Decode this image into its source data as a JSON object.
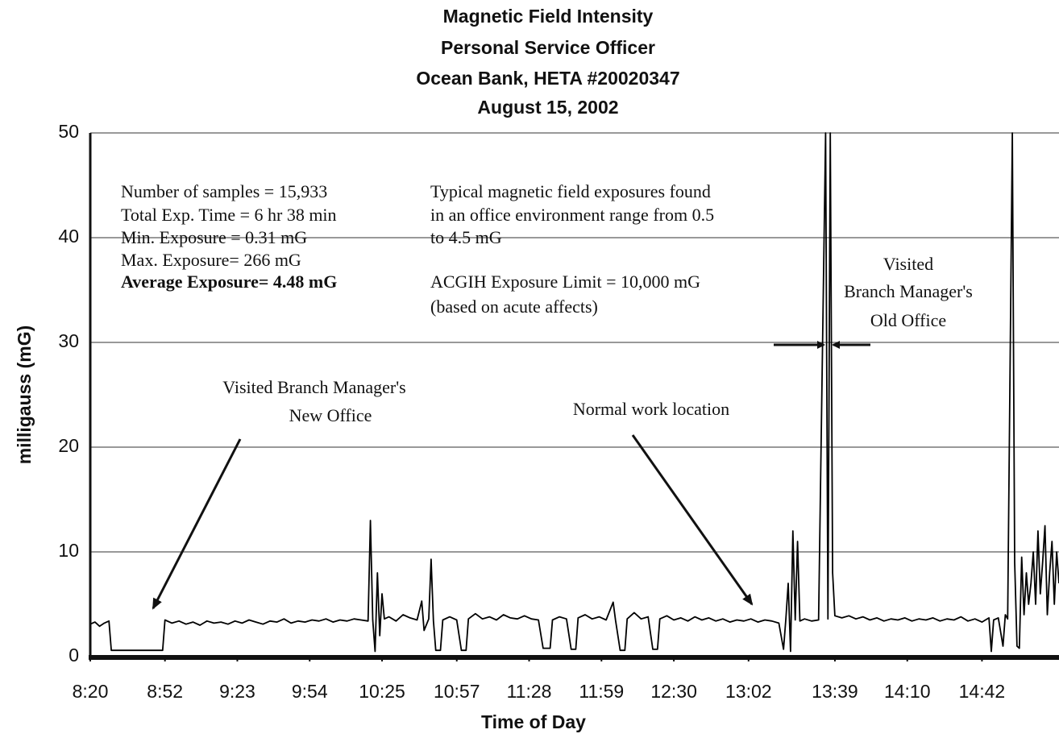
{
  "chart_data": {
    "type": "line",
    "title": [
      "Magnetic Field Intensity",
      "Personal Service Officer",
      "Ocean Bank, HETA #20020347",
      "August 15, 2002"
    ],
    "xlabel": "Time of Day",
    "ylabel": "milligauss (mG)",
    "annotations": [
      "Number of samples = 15,933",
      "Total Exp. Time = 6 hr 38 min",
      "Min. Exposure = 0.31 mG",
      "Max. Exposure= 266 mG",
      "Average Exposure= 4.48 mG",
      "Typical magnetic field exposures found",
      "in an office environment range from 0.5",
      "to 4.5 mG",
      "ACGIH Exposure Limit = 10,000 mG",
      "(based on acute affects)",
      "Visited",
      "Branch Manager's",
      "Old Office",
      "Visited Branch Manager's",
      "New Office",
      "Normal work location"
    ],
    "color": "#000000",
    "grid": true,
    "xlim": [
      500,
      915
    ],
    "ylim": [
      0,
      50
    ],
    "yticks": [
      0,
      10,
      20,
      30,
      40,
      50
    ],
    "xticks": [
      {
        "value": 500,
        "label": "8:20"
      },
      {
        "value": 532,
        "label": "8:52"
      },
      {
        "value": 563,
        "label": "9:23"
      },
      {
        "value": 594,
        "label": "9:54"
      },
      {
        "value": 625,
        "label": "10:25"
      },
      {
        "value": 657,
        "label": "10:57"
      },
      {
        "value": 688,
        "label": "11:28"
      },
      {
        "value": 719,
        "label": "11:59"
      },
      {
        "value": 750,
        "label": "12:30"
      },
      {
        "value": 782,
        "label": "13:02"
      },
      {
        "value": 819,
        "label": "13:39"
      },
      {
        "value": 850,
        "label": "14:10"
      },
      {
        "value": 882,
        "label": "14:42"
      }
    ],
    "x": [
      500,
      502,
      504,
      506,
      508,
      509,
      520,
      531,
      532,
      535,
      538,
      541,
      544,
      547,
      550,
      553,
      556,
      559,
      562,
      565,
      568,
      571,
      574,
      577,
      580,
      583,
      586,
      589,
      592,
      595,
      598,
      601,
      604,
      607,
      610,
      613,
      616,
      619,
      620,
      621,
      622,
      623,
      624,
      625,
      626,
      628,
      631,
      634,
      637,
      640,
      642,
      643,
      645,
      646,
      647,
      648,
      650,
      651,
      654,
      657,
      659,
      661,
      662,
      665,
      668,
      671,
      674,
      677,
      680,
      683,
      686,
      689,
      692,
      694,
      697,
      698,
      701,
      704,
      706,
      708,
      709,
      712,
      715,
      718,
      721,
      724,
      725,
      727,
      729,
      730,
      733,
      736,
      739,
      741,
      743,
      744,
      747,
      750,
      753,
      756,
      759,
      762,
      765,
      768,
      771,
      774,
      777,
      780,
      783,
      786,
      789,
      792,
      795,
      797,
      798,
      799,
      800,
      801,
      802,
      803,
      804,
      806,
      809,
      812,
      815,
      816,
      817,
      818,
      819,
      822,
      825,
      828,
      831,
      834,
      837,
      840,
      843,
      846,
      849,
      852,
      855,
      858,
      861,
      864,
      867,
      870,
      873,
      876,
      879,
      882,
      885,
      886,
      887,
      889,
      891,
      892,
      893,
      895,
      896,
      897,
      898,
      899,
      900,
      901,
      902,
      903,
      904,
      905,
      906,
      907,
      908,
      909,
      910,
      911,
      912,
      913,
      914,
      915
    ],
    "values": [
      3.1,
      3.3,
      2.9,
      3.2,
      3.4,
      0.6,
      0.6,
      0.6,
      3.5,
      3.2,
      3.4,
      3.1,
      3.3,
      3.0,
      3.4,
      3.2,
      3.3,
      3.1,
      3.4,
      3.2,
      3.5,
      3.3,
      3.1,
      3.4,
      3.3,
      3.6,
      3.2,
      3.4,
      3.3,
      3.5,
      3.4,
      3.6,
      3.3,
      3.5,
      3.4,
      3.6,
      3.5,
      3.4,
      13,
      3.5,
      0.5,
      8,
      2,
      6,
      3.6,
      3.8,
      3.4,
      4,
      3.7,
      3.5,
      5.3,
      2.5,
      3.6,
      9.3,
      3.4,
      0.6,
      0.6,
      3.5,
      3.8,
      3.5,
      0.6,
      0.6,
      3.6,
      4.1,
      3.6,
      3.8,
      3.5,
      4.0,
      3.7,
      3.6,
      3.9,
      3.6,
      3.5,
      0.8,
      0.8,
      3.5,
      3.8,
      3.6,
      0.7,
      0.7,
      3.7,
      4.0,
      3.6,
      3.8,
      3.5,
      5.2,
      3.5,
      0.6,
      0.6,
      3.6,
      4.2,
      3.6,
      3.8,
      0.7,
      0.7,
      3.6,
      3.9,
      3.5,
      3.7,
      3.4,
      3.8,
      3.5,
      3.7,
      3.4,
      3.6,
      3.3,
      3.5,
      3.4,
      3.6,
      3.3,
      3.5,
      3.4,
      3.2,
      0.7,
      3.6,
      7,
      0.5,
      12,
      3.5,
      11,
      3.4,
      3.6,
      3.4,
      3.5,
      50,
      3.6,
      50,
      8,
      3.9,
      3.7,
      3.9,
      3.6,
      3.8,
      3.5,
      3.7,
      3.4,
      3.6,
      3.5,
      3.7,
      3.4,
      3.6,
      3.5,
      3.7,
      3.4,
      3.6,
      3.5,
      3.8,
      3.4,
      3.6,
      3.3,
      3.7,
      0.5,
      3.5,
      3.7,
      1,
      4,
      3.6,
      50,
      9,
      1,
      0.8,
      9.5,
      4,
      8,
      5,
      7,
      10,
      5,
      12,
      6,
      9,
      12.5,
      4,
      8,
      11,
      5,
      10,
      7
    ]
  }
}
